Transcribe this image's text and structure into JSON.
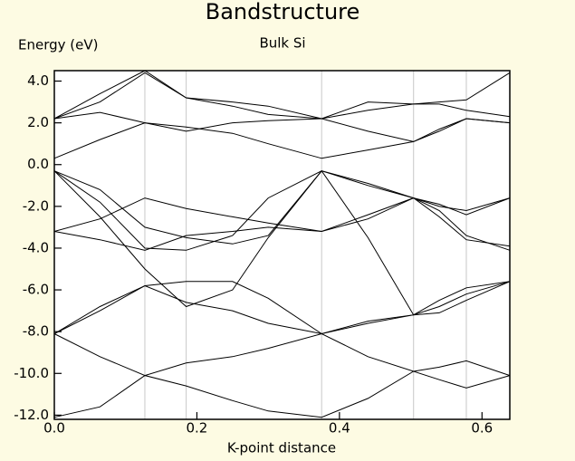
{
  "chart_data": {
    "type": "line",
    "title": "Bandstructure",
    "subtitle": "Bulk Si",
    "y_label": "Energy (eV)",
    "x_label": "K-point distance",
    "x": [
      0,
      0.064,
      0.127,
      0.185,
      0.25,
      0.3,
      0.375,
      0.44,
      0.504,
      0.54,
      0.578,
      0.639
    ],
    "series": [
      {
        "color": "#000000",
        "values": [
          -12.1,
          -11.6,
          -10.1,
          -10.6,
          -11.3,
          -11.8,
          -12.1,
          -11.2,
          -9.9,
          -10.3,
          -10.7,
          -10.1
        ]
      },
      {
        "color": "#000000",
        "values": [
          -8.1,
          -9.2,
          -10.1,
          -9.5,
          -9.2,
          -8.8,
          -8.1,
          -9.2,
          -9.9,
          -9.7,
          -9.4,
          -10.1
        ]
      },
      {
        "color": "#000000",
        "values": [
          -8.1,
          -6.8,
          -5.8,
          -6.6,
          -7.0,
          -7.6,
          -8.1,
          -7.5,
          -7.2,
          -6.5,
          -5.9,
          -5.6
        ]
      },
      {
        "color": "#000000",
        "values": [
          -8.1,
          -7.0,
          -5.8,
          -5.6,
          -5.6,
          -6.4,
          -8.1,
          -7.6,
          -7.2,
          -6.8,
          -6.2,
          -5.6
        ]
      },
      {
        "color": "#000000",
        "values": [
          -0.3,
          -2.5,
          -5.0,
          -6.8,
          -6.0,
          -3.5,
          -0.3,
          -3.5,
          -7.2,
          -7.1,
          -6.5,
          -5.6
        ]
      },
      {
        "color": "#000000",
        "values": [
          -3.2,
          -3.6,
          -4.1,
          -3.4,
          -3.2,
          -3.0,
          -3.2,
          -2.4,
          -1.6,
          -2.2,
          -3.4,
          -4.1
        ]
      },
      {
        "color": "#000000",
        "values": [
          -3.2,
          -2.6,
          -1.6,
          -2.1,
          -2.5,
          -2.8,
          -3.2,
          -2.6,
          -1.6,
          -1.9,
          -2.4,
          -1.6
        ]
      },
      {
        "color": "#000000",
        "values": [
          -0.3,
          -1.2,
          -3.0,
          -3.5,
          -3.8,
          -3.4,
          -0.3,
          -1.0,
          -1.6,
          -2.5,
          -3.6,
          -3.9
        ]
      },
      {
        "color": "#000000",
        "values": [
          -0.3,
          -1.8,
          -4.0,
          -4.1,
          -3.4,
          -1.6,
          -0.3,
          -0.9,
          -1.6,
          -2.0,
          -2.2,
          -1.6
        ]
      },
      {
        "color": "#000000",
        "values": [
          0.3,
          1.2,
          2.0,
          1.8,
          1.5,
          1.0,
          0.3,
          0.7,
          1.1,
          1.7,
          2.2,
          2.0
        ]
      },
      {
        "color": "#000000",
        "values": [
          2.2,
          2.5,
          2.0,
          1.6,
          2.0,
          2.1,
          2.2,
          1.6,
          1.1,
          1.6,
          2.2,
          2.0
        ]
      },
      {
        "color": "#000000",
        "values": [
          2.2,
          3.0,
          4.4,
          3.2,
          2.8,
          2.4,
          2.2,
          2.6,
          2.9,
          2.9,
          2.6,
          2.3
        ]
      },
      {
        "color": "#000000",
        "values": [
          2.2,
          3.4,
          4.5,
          3.2,
          3.0,
          2.8,
          2.2,
          3.0,
          2.9,
          3.0,
          3.1,
          4.4
        ]
      }
    ],
    "vlines": [
      0.127,
      0.185,
      0.375,
      0.504,
      0.578
    ],
    "vline_color": "#c8c8c8",
    "xlim": [
      0,
      0.639
    ],
    "ylim": [
      -12.2,
      4.5
    ],
    "xticks": [
      {
        "value": 0,
        "label": "0.0"
      },
      {
        "value": 0.2,
        "label": "0.2"
      },
      {
        "value": 0.4,
        "label": "0.4"
      },
      {
        "value": 0.6,
        "label": "0.6"
      }
    ],
    "yticks": [
      {
        "value": -12,
        "label": "-12.0"
      },
      {
        "value": -10,
        "label": "-10.0"
      },
      {
        "value": -8,
        "label": "-8.0"
      },
      {
        "value": -6,
        "label": "-6.0"
      },
      {
        "value": -4,
        "label": "-4.0"
      },
      {
        "value": -2,
        "label": "-2.0"
      },
      {
        "value": 0,
        "label": "0.0"
      },
      {
        "value": 2,
        "label": "2.0"
      },
      {
        "value": 4,
        "label": "4.0"
      }
    ]
  }
}
